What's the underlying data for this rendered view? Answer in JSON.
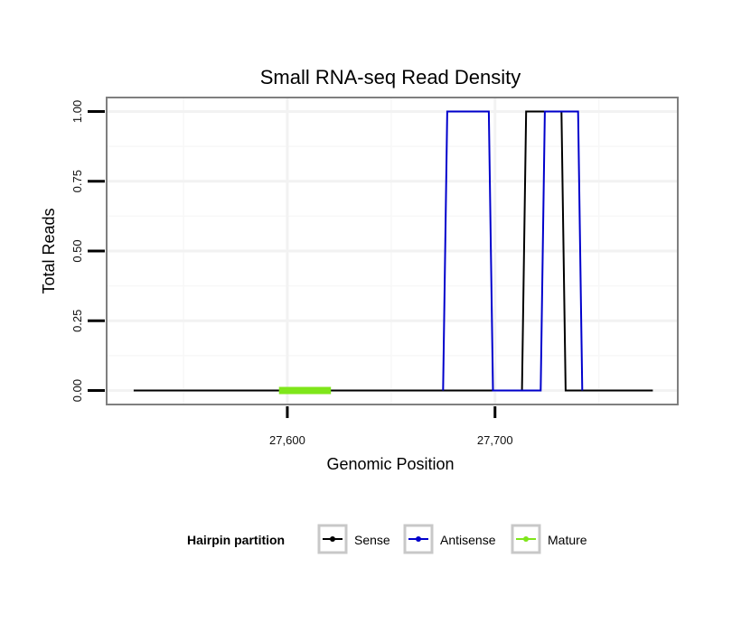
{
  "chart_data": {
    "type": "line",
    "title": "Small RNA-seq Read Density",
    "xlabel": "Genomic Position",
    "ylabel": "Total Reads",
    "xlim": [
      27513,
      27788
    ],
    "ylim": [
      -0.05,
      1.05
    ],
    "xticks": [
      27600,
      27700
    ],
    "xtick_labels": [
      "27,600",
      "27,700"
    ],
    "yticks": [
      0,
      0.25,
      0.5,
      0.75,
      1
    ],
    "ytick_labels": [
      "0.00",
      "0.25",
      "0.50",
      "0.75",
      "1.00"
    ],
    "grid": true,
    "series": [
      {
        "name": "Sense",
        "color": "#000000",
        "x": [
          27526,
          27713,
          27715,
          27732,
          27734,
          27776
        ],
        "y": [
          0,
          0,
          1,
          1,
          0,
          0
        ]
      },
      {
        "name": "Antisense",
        "color": "#0000cc",
        "x": [
          27675,
          27677,
          27697,
          27699,
          27722,
          27724,
          27740,
          27742
        ],
        "y": [
          0,
          1,
          1,
          0,
          0,
          1,
          1,
          0
        ]
      },
      {
        "name": "Mature",
        "color": "#7fe61a",
        "x": [
          27596,
          27621
        ],
        "y": [
          0,
          0
        ]
      }
    ],
    "legend": {
      "title": "Hairpin partition",
      "position": "bottom",
      "entries": [
        "Sense",
        "Antisense",
        "Mature"
      ]
    }
  }
}
